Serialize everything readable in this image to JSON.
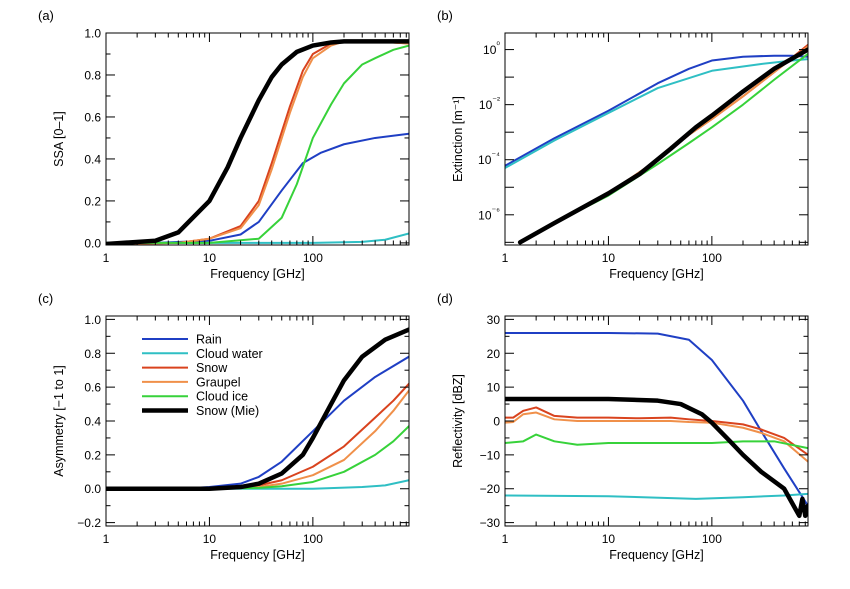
{
  "figure": {
    "legend": {
      "entries": [
        "Rain",
        "Cloud water",
        "Snow",
        "Graupel",
        "Cloud ice",
        "Snow (Mie)"
      ]
    }
  },
  "series_styles": [
    {
      "name": "Rain",
      "color": "#1f3fc4"
    },
    {
      "name": "Cloud water",
      "color": "#2fbfc4"
    },
    {
      "name": "Snow",
      "color": "#d9431e"
    },
    {
      "name": "Graupel",
      "color": "#f0904a"
    },
    {
      "name": "Cloud ice",
      "color": "#37d23a"
    },
    {
      "name": "Snow (Mie)",
      "color": "#000000"
    }
  ],
  "chart_data": [
    {
      "type": "line",
      "panel": "(a)",
      "xlabel": "Frequency [GHz]",
      "ylabel": "SSA [0–1]",
      "xscale": "log",
      "yscale": "linear",
      "xlim": [
        1,
        850
      ],
      "ylim": [
        -0.01,
        1.0
      ],
      "xticks": [
        1,
        10,
        100
      ],
      "xtick_labels": [
        "1",
        "10",
        "100"
      ],
      "yticks": [
        0.0,
        0.2,
        0.4,
        0.6,
        0.8,
        1.0
      ],
      "ytick_labels": [
        "0.0",
        "0.2",
        "0.4",
        "0.6",
        "0.8",
        "1.0"
      ],
      "series": [
        {
          "x": [
            1,
            3,
            10,
            20,
            30,
            50,
            80,
            120,
            200,
            400,
            850
          ],
          "y": [
            0.0,
            0.0,
            0.01,
            0.04,
            0.1,
            0.25,
            0.38,
            0.43,
            0.47,
            0.5,
            0.52
          ]
        },
        {
          "x": [
            1,
            10,
            100,
            300,
            500,
            850
          ],
          "y": [
            0.0,
            0.0,
            0.0,
            0.005,
            0.015,
            0.045
          ]
        },
        {
          "x": [
            1,
            5,
            10,
            20,
            30,
            40,
            60,
            80,
            100,
            150,
            200,
            400,
            850
          ],
          "y": [
            -0.005,
            0.0,
            0.02,
            0.08,
            0.2,
            0.38,
            0.65,
            0.82,
            0.9,
            0.95,
            0.96,
            0.96,
            0.95
          ]
        },
        {
          "x": [
            1,
            5,
            10,
            20,
            30,
            40,
            60,
            80,
            100,
            150,
            200,
            400,
            850
          ],
          "y": [
            -0.005,
            0.0,
            0.02,
            0.07,
            0.18,
            0.35,
            0.62,
            0.79,
            0.88,
            0.94,
            0.96,
            0.96,
            0.95
          ]
        },
        {
          "x": [
            1,
            10,
            30,
            50,
            70,
            100,
            150,
            200,
            300,
            400,
            600,
            850
          ],
          "y": [
            0.0,
            0.0,
            0.02,
            0.12,
            0.28,
            0.5,
            0.66,
            0.76,
            0.85,
            0.88,
            0.92,
            0.94
          ]
        },
        {
          "x": [
            1,
            3,
            5,
            10,
            15,
            20,
            30,
            40,
            50,
            70,
            100,
            150,
            200,
            400,
            850
          ],
          "y": [
            -0.005,
            0.01,
            0.05,
            0.2,
            0.36,
            0.5,
            0.68,
            0.79,
            0.85,
            0.91,
            0.94,
            0.955,
            0.96,
            0.96,
            0.96
          ]
        }
      ]
    },
    {
      "type": "line",
      "panel": "(b)",
      "xlabel": "Frequency [GHz]",
      "ylabel": "Extinction [m⁻¹]",
      "xscale": "log",
      "yscale": "log",
      "xlim": [
        1,
        850
      ],
      "ylim": [
        8e-08,
        4
      ],
      "xticks": [
        1,
        10,
        100
      ],
      "xtick_labels": [
        "1",
        "10",
        "100"
      ],
      "yticks": [
        1e-06,
        0.0001,
        0.01,
        1
      ],
      "ytick_labels": [
        "10⁻⁶",
        "10⁻⁴",
        "10⁻²",
        "10⁰"
      ],
      "series": [
        {
          "x": [
            1,
            3,
            10,
            30,
            60,
            100,
            200,
            400,
            600,
            850
          ],
          "y": [
            6e-05,
            0.0006,
            0.006,
            0.06,
            0.2,
            0.4,
            0.55,
            0.6,
            0.6,
            0.55
          ]
        },
        {
          "x": [
            1,
            3,
            10,
            30,
            100,
            300,
            600,
            850
          ],
          "y": [
            5e-05,
            0.0005,
            0.005,
            0.04,
            0.17,
            0.3,
            0.4,
            0.45
          ]
        },
        {
          "x": [
            1.4,
            3,
            10,
            30,
            60,
            100,
            200,
            400,
            850
          ],
          "y": [
            1e-07,
            5e-07,
            6e-06,
            0.0001,
            0.0008,
            0.003,
            0.02,
            0.15,
            1.5
          ]
        },
        {
          "x": [
            1.4,
            3,
            10,
            30,
            60,
            100,
            200,
            400,
            850
          ],
          "y": [
            1e-07,
            5e-07,
            6e-06,
            0.0001,
            0.0008,
            0.003,
            0.02,
            0.15,
            1.3
          ]
        },
        {
          "x": [
            1.4,
            3,
            10,
            30,
            60,
            100,
            200,
            400,
            850
          ],
          "y": [
            1e-07,
            5e-07,
            5e-06,
            7e-05,
            0.0004,
            0.0015,
            0.01,
            0.08,
            0.7
          ]
        },
        {
          "x": [
            1.4,
            3,
            10,
            20,
            40,
            70,
            100,
            200,
            400,
            850
          ],
          "y": [
            1e-07,
            5e-07,
            6e-06,
            3e-05,
            0.00025,
            0.0015,
            0.004,
            0.03,
            0.2,
            1.0
          ]
        }
      ]
    },
    {
      "type": "line",
      "panel": "(c)",
      "xlabel": "Frequency [GHz]",
      "ylabel": "Asymmetry [−1 to 1]",
      "xscale": "log",
      "yscale": "linear",
      "xlim": [
        1,
        850
      ],
      "ylim": [
        -0.22,
        1.02
      ],
      "xticks": [
        1,
        10,
        100
      ],
      "xtick_labels": [
        "1",
        "10",
        "100"
      ],
      "yticks": [
        -0.2,
        0.0,
        0.2,
        0.4,
        0.6,
        0.8,
        1.0
      ],
      "ytick_labels": [
        "−0.2",
        "0.0",
        "0.2",
        "0.4",
        "0.6",
        "0.8",
        "1.0"
      ],
      "series": [
        {
          "x": [
            1,
            5,
            10,
            20,
            30,
            50,
            100,
            200,
            400,
            850
          ],
          "y": [
            0.0,
            0.0,
            0.01,
            0.03,
            0.07,
            0.16,
            0.34,
            0.52,
            0.66,
            0.78
          ]
        },
        {
          "x": [
            1,
            100,
            300,
            500,
            850
          ],
          "y": [
            0.0,
            0.0,
            0.01,
            0.02,
            0.05
          ]
        },
        {
          "x": [
            1,
            10,
            30,
            50,
            100,
            200,
            400,
            600,
            850
          ],
          "y": [
            0.0,
            0.0,
            0.02,
            0.05,
            0.13,
            0.25,
            0.42,
            0.52,
            0.62
          ]
        },
        {
          "x": [
            1,
            10,
            30,
            50,
            100,
            200,
            400,
            600,
            850
          ],
          "y": [
            0.0,
            0.0,
            0.01,
            0.03,
            0.08,
            0.17,
            0.34,
            0.46,
            0.58
          ]
        },
        {
          "x": [
            1,
            10,
            30,
            50,
            100,
            200,
            400,
            600,
            850
          ],
          "y": [
            0.0,
            0.0,
            0.005,
            0.015,
            0.04,
            0.1,
            0.2,
            0.28,
            0.37
          ]
        },
        {
          "x": [
            1,
            10,
            20,
            30,
            50,
            80,
            100,
            150,
            200,
            300,
            500,
            850
          ],
          "y": [
            0.0,
            0.0,
            0.01,
            0.03,
            0.09,
            0.2,
            0.3,
            0.5,
            0.64,
            0.78,
            0.88,
            0.94
          ]
        }
      ]
    },
    {
      "type": "line",
      "panel": "(d)",
      "xlabel": "Frequency [GHz]",
      "ylabel": "Reflectivity [dBZ]",
      "xscale": "log",
      "yscale": "linear",
      "xlim": [
        1,
        850
      ],
      "ylim": [
        -31,
        31
      ],
      "xticks": [
        1,
        10,
        100
      ],
      "xtick_labels": [
        "1",
        "10",
        "100"
      ],
      "yticks": [
        -30,
        -20,
        -10,
        0,
        10,
        20,
        30
      ],
      "ytick_labels": [
        "−30",
        "−20",
        "−10",
        "0",
        "10",
        "20",
        "30"
      ],
      "series": [
        {
          "x": [
            1,
            10,
            30,
            60,
            100,
            200,
            300,
            500,
            850
          ],
          "y": [
            26,
            26,
            25.8,
            24,
            18,
            6,
            -3,
            -14,
            -25
          ]
        },
        {
          "x": [
            1,
            10,
            70,
            200,
            500,
            850
          ],
          "y": [
            -22,
            -22.2,
            -23,
            -22.5,
            -22,
            -21.5
          ]
        },
        {
          "x": [
            1,
            1.2,
            1.5,
            2,
            3,
            5,
            10,
            20,
            40,
            60,
            100,
            200,
            300,
            500,
            850
          ],
          "y": [
            1,
            1,
            3,
            4,
            1.5,
            1,
            1,
            0.8,
            1,
            0.5,
            0,
            -1,
            -2.5,
            -5,
            -10
          ]
        },
        {
          "x": [
            1,
            1.2,
            1.5,
            2,
            3,
            5,
            10,
            20,
            40,
            60,
            100,
            200,
            300,
            500,
            850
          ],
          "y": [
            -0.5,
            -0.3,
            2,
            2.5,
            0.5,
            0,
            0,
            0,
            0,
            -0.3,
            -0.5,
            -2,
            -3.5,
            -6,
            -12
          ]
        },
        {
          "x": [
            1,
            1.5,
            2,
            3,
            5,
            10,
            20,
            50,
            100,
            200,
            400,
            850
          ],
          "y": [
            -6.5,
            -6,
            -4,
            -6,
            -7,
            -6.5,
            -6.5,
            -6.5,
            -6.5,
            -6,
            -6,
            -8
          ]
        },
        {
          "x": [
            1,
            10,
            30,
            50,
            80,
            100,
            150,
            200,
            300,
            500,
            700,
            750,
            800,
            850
          ],
          "y": [
            6.5,
            6.5,
            6,
            5,
            2,
            -0.5,
            -6,
            -10,
            -15,
            -20,
            -28,
            -23,
            -28,
            -25
          ]
        }
      ]
    }
  ]
}
